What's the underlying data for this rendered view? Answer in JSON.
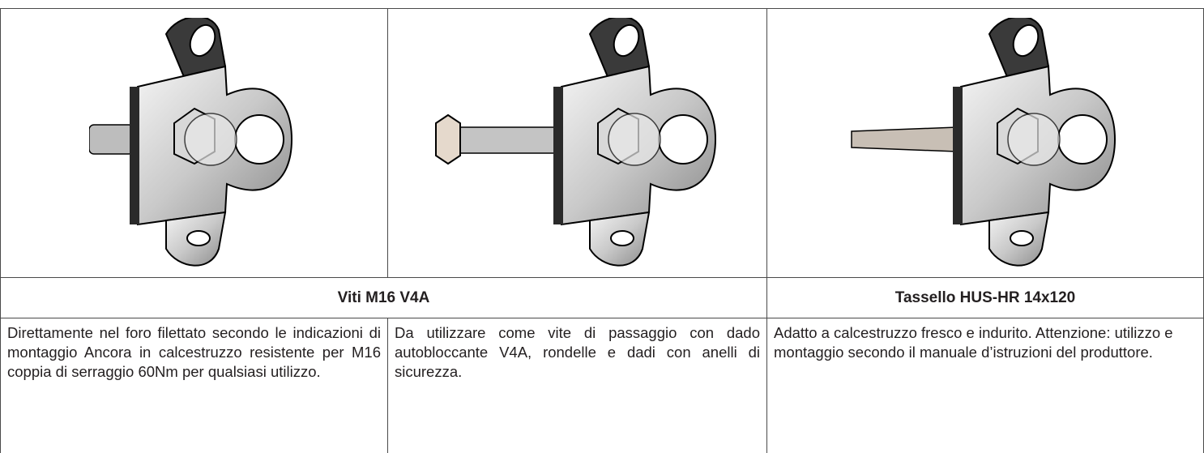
{
  "table": {
    "headers": [
      "Viti M16 V4A",
      "Tassello HUS-HR 14x120"
    ],
    "descriptions": [
      "Direttamente nel foro filettato secondo le indicazioni di montaggio Ancora in calcestruzzo resistente per M16 coppia di serraggio 60Nm per qualsiasi utilizzo.",
      "Da utilizzare come vite di passaggio con dado autobloccante V4A, rondelle e dadi con anelli di sicurezza.",
      "Adatto a calcestruzzo fresco e indurito. Attenzione: utilizzo e montaggio secondo il manuale d’istruzioni del produttore."
    ]
  }
}
